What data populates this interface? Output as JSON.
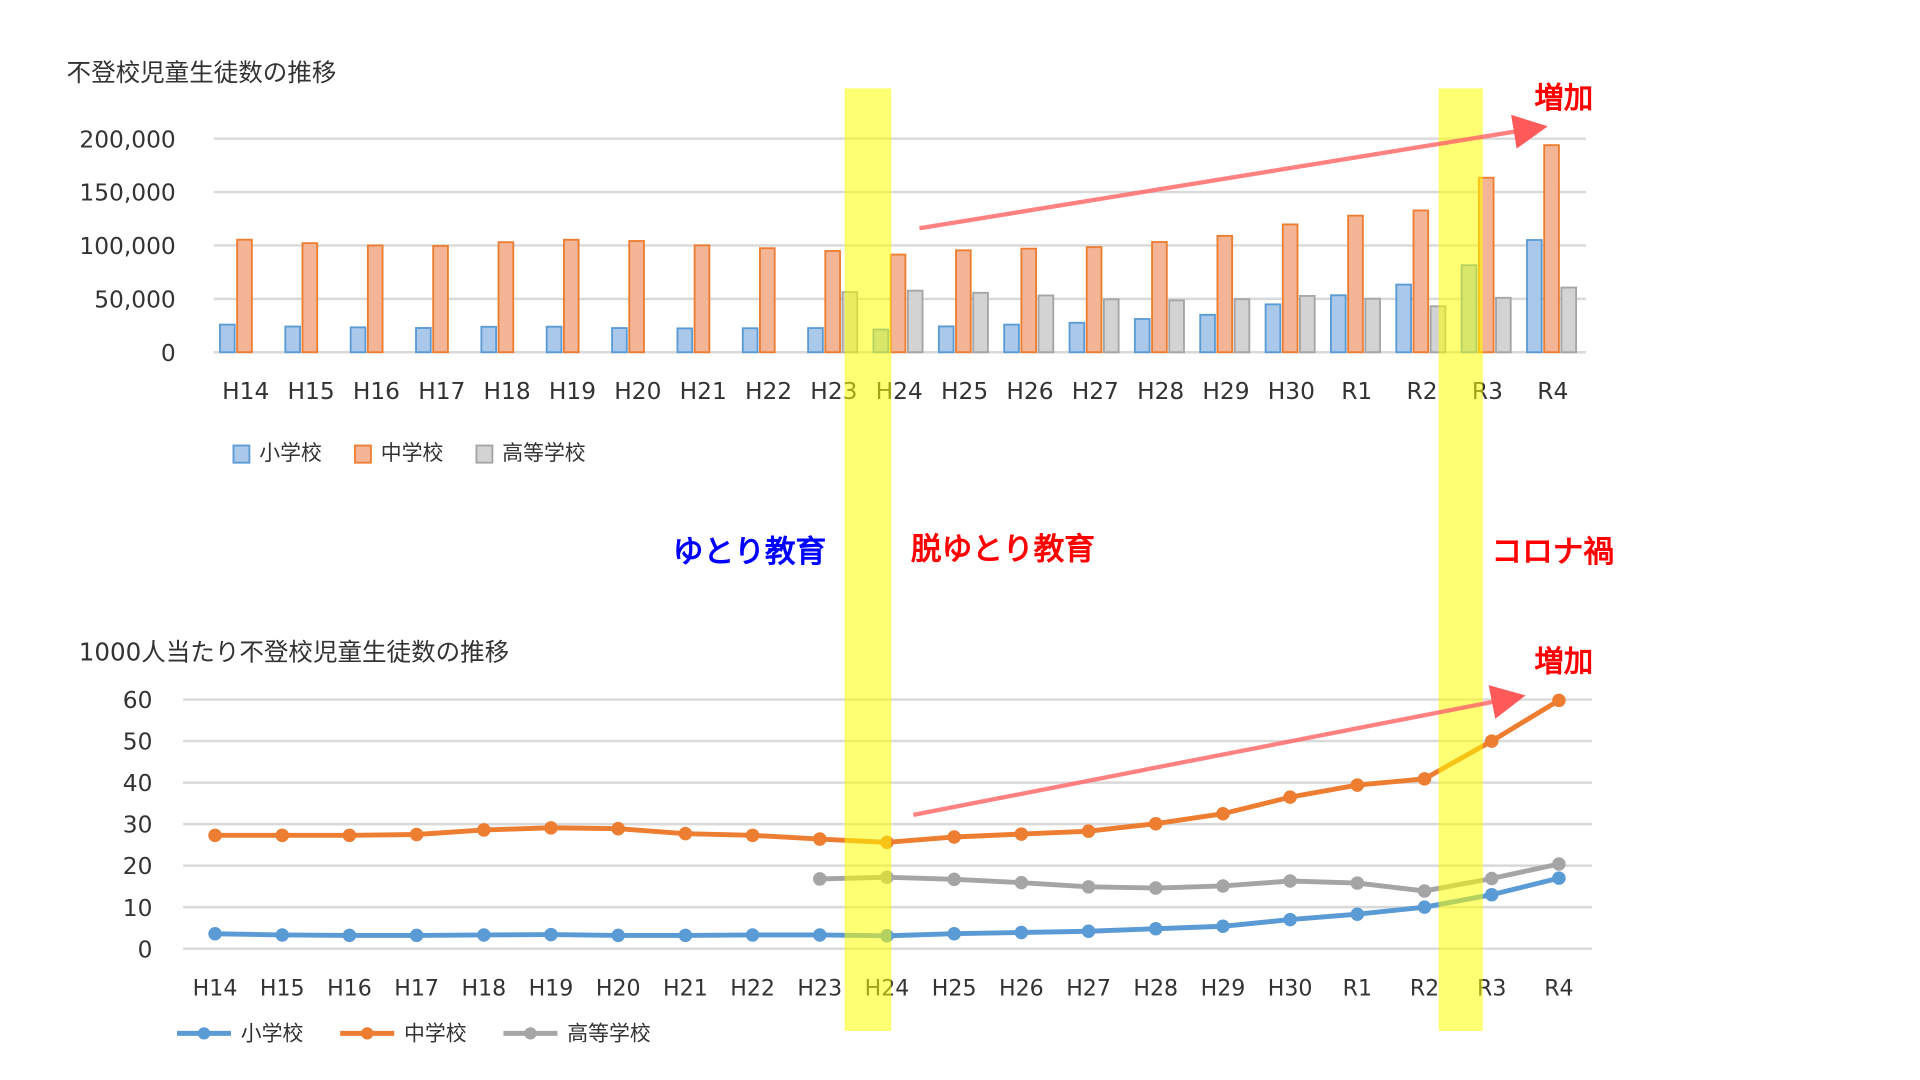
{
  "chart_data": [
    {
      "type": "bar",
      "title": "不登校児童生徒数の推移",
      "categories": [
        "H14",
        "H15",
        "H16",
        "H17",
        "H18",
        "H19",
        "H20",
        "H21",
        "H22",
        "H23",
        "H24",
        "H25",
        "H26",
        "H27",
        "H28",
        "H29",
        "H30",
        "R1",
        "R2",
        "R3",
        "R4"
      ],
      "ylim": [
        0,
        200000
      ],
      "yticks": [
        "0",
        "50,000",
        "100,000",
        "150,000",
        "200,000"
      ],
      "legend_position": "bottom-left",
      "series": [
        {
          "name": "小学校",
          "color": "#5b9bd5",
          "values": [
            25869,
            24077,
            23318,
            22709,
            23825,
            23927,
            22652,
            22327,
            22463,
            22622,
            21243,
            24175,
            25864,
            27583,
            31151,
            35032,
            44841,
            53350,
            63350,
            81498,
            105112
          ]
        },
        {
          "name": "中学校",
          "color": "#ed7d31",
          "values": [
            105383,
            102149,
            100040,
            99578,
            103069,
            105328,
            104153,
            100105,
            97428,
            94836,
            91446,
            95442,
            97033,
            98408,
            103235,
            108999,
            119687,
            127922,
            132777,
            163442,
            193936
          ]
        },
        {
          "name": "高等学校",
          "color": "#a5a5a5",
          "values": [
            null,
            null,
            null,
            null,
            null,
            null,
            null,
            null,
            null,
            56361,
            57664,
            55655,
            53156,
            49563,
            48565,
            49643,
            52723,
            50100,
            43051,
            50985,
            60575
          ]
        }
      ]
    },
    {
      "type": "line",
      "title": "1000人当たり不登校児童生徒数の推移",
      "categories": [
        "H14",
        "H15",
        "H16",
        "H17",
        "H18",
        "H19",
        "H20",
        "H21",
        "H22",
        "H23",
        "H24",
        "H25",
        "H26",
        "H27",
        "H28",
        "H29",
        "H30",
        "R1",
        "R2",
        "R3",
        "R4"
      ],
      "ylim": [
        0,
        60
      ],
      "yticks": [
        "0",
        "10",
        "20",
        "30",
        "40",
        "50",
        "60"
      ],
      "legend_position": "bottom-left",
      "series": [
        {
          "name": "小学校",
          "color": "#5b9bd5",
          "values": [
            3.6,
            3.3,
            3.2,
            3.2,
            3.3,
            3.4,
            3.2,
            3.2,
            3.3,
            3.3,
            3.1,
            3.6,
            3.9,
            4.2,
            4.8,
            5.4,
            7.0,
            8.3,
            10.0,
            13.0,
            17.0
          ]
        },
        {
          "name": "中学校",
          "color": "#ed7d31",
          "values": [
            27.3,
            27.3,
            27.3,
            27.5,
            28.6,
            29.1,
            28.9,
            27.7,
            27.3,
            26.4,
            25.6,
            26.9,
            27.6,
            28.3,
            30.1,
            32.5,
            36.5,
            39.4,
            40.9,
            50.0,
            59.8
          ]
        },
        {
          "name": "高等学校",
          "color": "#a5a5a5",
          "values": [
            null,
            null,
            null,
            null,
            null,
            null,
            null,
            null,
            null,
            16.8,
            17.2,
            16.7,
            15.9,
            14.9,
            14.6,
            15.1,
            16.3,
            15.8,
            13.9,
            16.9,
            20.4
          ]
        }
      ]
    }
  ],
  "annotations": {
    "yutori": {
      "text": "ゆとり教育",
      "color": "#0000ff"
    },
    "datsu_yutori": {
      "text": "脱ゆとり教育",
      "color": "#ff0000"
    },
    "corona": {
      "text": "コロナ禍",
      "color": "#ff0000"
    },
    "increase_top": {
      "text": "増加",
      "color": "#ff0000"
    },
    "increase_bottom": {
      "text": "増加",
      "color": "#ff0000"
    }
  },
  "highlight_color": "#ffff00"
}
